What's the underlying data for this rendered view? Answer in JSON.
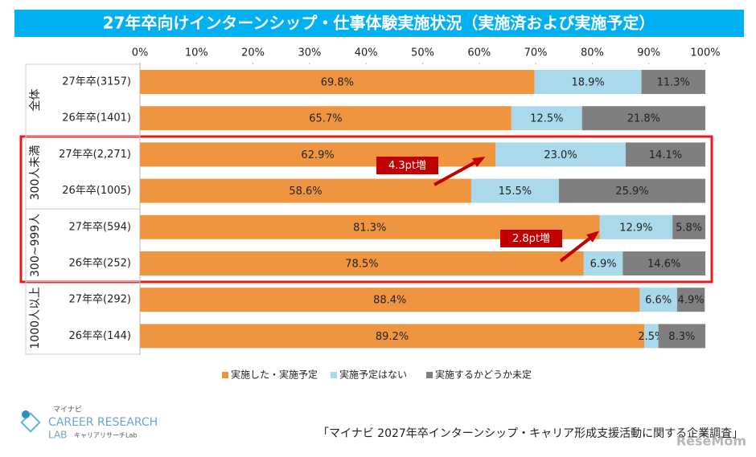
{
  "chart_data": {
    "type": "bar",
    "orientation": "horizontal",
    "stacked": true,
    "title": "27年卒向けインターンシップ・仕事体験実施状況（実施済および実施予定）",
    "groups": [
      "全体",
      "300人未満",
      "300~999人",
      "1000人以上"
    ],
    "categories": [
      "27年卒(3157)",
      "26年卒(1401)",
      "27年卒(2,271)",
      "26年卒(1005)",
      "27年卒(594)",
      "26年卒(252)",
      "27年卒(292)",
      "26年卒(144)"
    ],
    "series": [
      {
        "name": "実施した・実施予定",
        "color": "#f0953f",
        "values": [
          69.8,
          65.7,
          62.9,
          58.6,
          81.3,
          78.5,
          88.4,
          89.2
        ],
        "value_labels": [
          "69.8%",
          "65.7%",
          "62.9%",
          "58.6%",
          "81.3%",
          "78.5%",
          "88.4%",
          "89.2%"
        ]
      },
      {
        "name": "実施予定はない",
        "color": "#a9d9ea",
        "values": [
          18.9,
          12.5,
          23.0,
          15.5,
          12.9,
          6.9,
          6.6,
          2.5
        ],
        "value_labels": [
          "18.9%",
          "12.5%",
          "23.0%",
          "15.5%",
          "12.9%",
          "6.9%",
          "6.6%",
          "2.5%"
        ]
      },
      {
        "name": "実施するかどうか未定",
        "color": "#7f7f7f",
        "values": [
          11.3,
          21.8,
          14.1,
          25.9,
          5.8,
          14.6,
          4.9,
          8.3
        ],
        "value_labels": [
          "11.3%",
          "21.8%",
          "14.1%",
          "25.9%",
          "5.8%",
          "14.6%",
          "4.9%",
          "8.3%"
        ]
      }
    ],
    "xlim": [
      0,
      100
    ],
    "xticks": [
      {
        "value": 0,
        "label": "0%"
      },
      {
        "value": 10,
        "label": "10%"
      },
      {
        "value": 20,
        "label": "20%"
      },
      {
        "value": 30,
        "label": "30%"
      },
      {
        "value": 40,
        "label": "40%"
      },
      {
        "value": 50,
        "label": "50%"
      },
      {
        "value": 60,
        "label": "60%"
      },
      {
        "value": 70,
        "label": "70%"
      },
      {
        "value": 80,
        "label": "80%"
      },
      {
        "value": 90,
        "label": "90%"
      },
      {
        "value": 100,
        "label": "100%"
      }
    ],
    "legend": "bottom",
    "annotations": [
      "4.3pt増",
      "2.8pt増"
    ],
    "source": "「マイナビ 2027年卒インターンシップ・キャリア形成支援活動に関する企業調査」"
  },
  "logo": {
    "top": "マイナビ",
    "main": "CAREER RESEARCH",
    "sub": "LAB",
    "kana": "キャリアリサーチLab"
  },
  "watermark": "ReseMom"
}
